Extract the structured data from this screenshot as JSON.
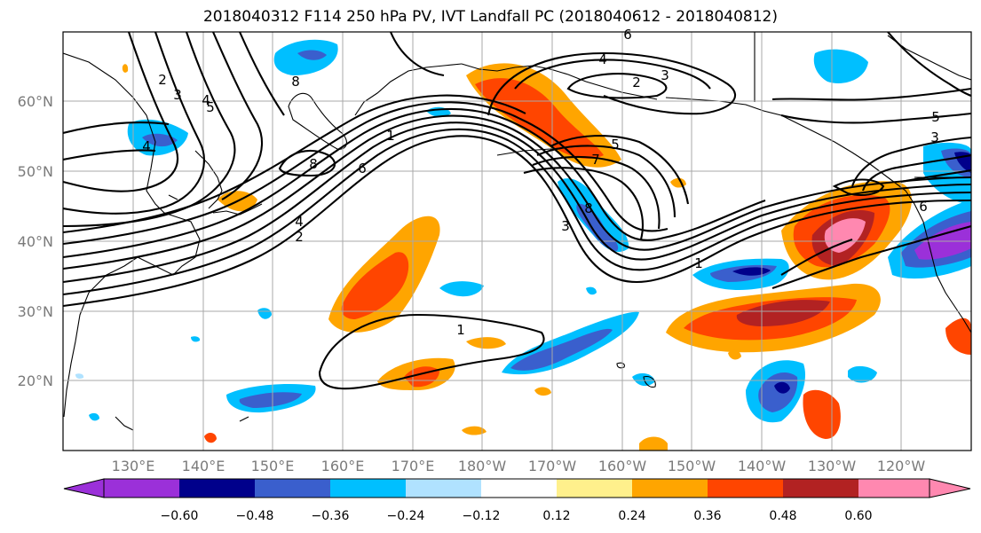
{
  "title": "2018040312 F114 250 hPa PV, IVT Landfall PC (2018040612 - 2018040812)",
  "map": {
    "lat_labels": [
      "60°N",
      "50°N",
      "40°N",
      "30°N",
      "20°N"
    ],
    "lon_labels": [
      "130°E",
      "140°E",
      "150°E",
      "160°E",
      "170°E",
      "180°W",
      "170°W",
      "160°W",
      "150°W",
      "140°W",
      "130°W",
      "120°W"
    ],
    "grid": true,
    "projection_extent": {
      "lon_min": 120,
      "lon_max": 250,
      "lat_min": 10,
      "lat_max": 70
    }
  },
  "colorbar": {
    "colors": [
      "#9b30d9",
      "#00008b",
      "#3a5fcd",
      "#00bfff",
      "#b0e2ff",
      "#ffffff",
      "#fff08c",
      "#ffa500",
      "#ff4500",
      "#b22222",
      "#ff88b0"
    ],
    "tick_labels": [
      "−0.60",
      "−0.48",
      "−0.36",
      "−0.24",
      "−0.12",
      "0.12",
      "0.24",
      "0.36",
      "0.48",
      "0.60"
    ],
    "extend": "both"
  },
  "contour_labels": [
    "2",
    "3",
    "4",
    "5",
    "4",
    "8",
    "8",
    "6",
    "4",
    "2",
    "1",
    "6",
    "4",
    "2",
    "3",
    "5",
    "7",
    "8",
    "3",
    "1",
    "5",
    "3",
    "6",
    "1"
  ]
}
